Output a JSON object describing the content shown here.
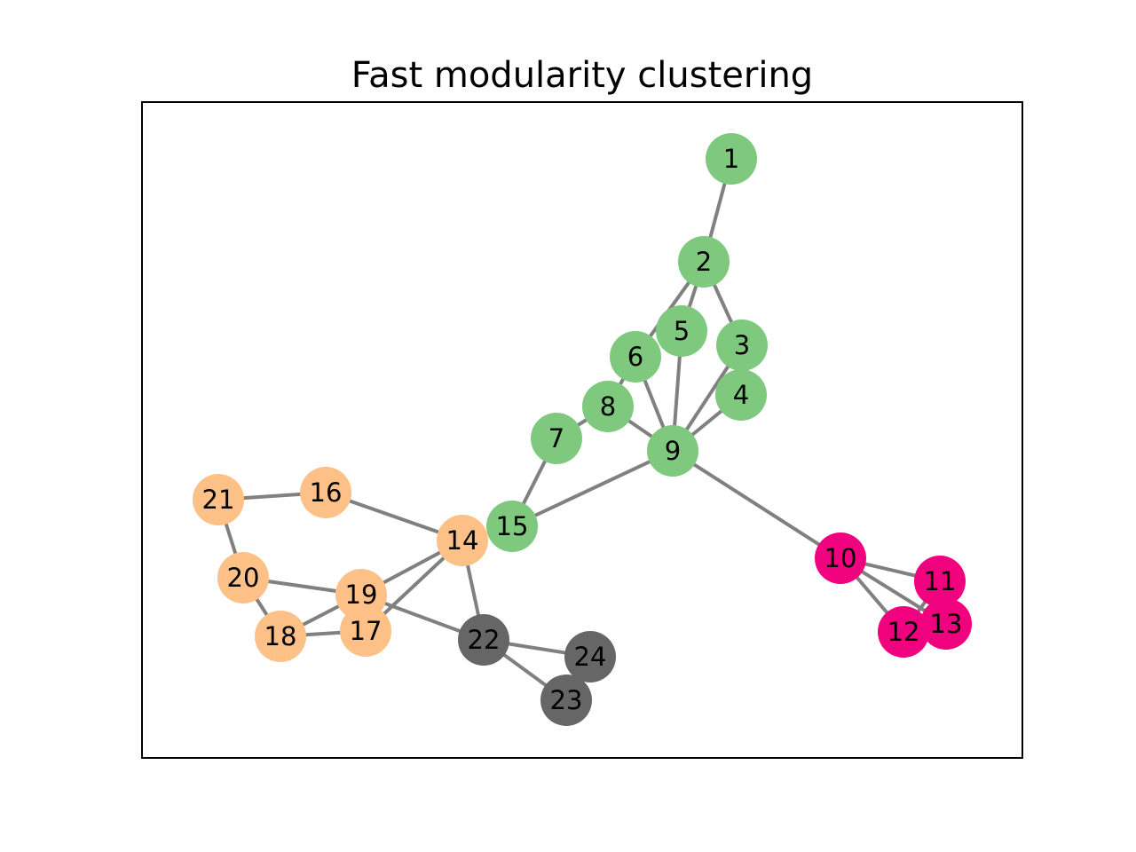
{
  "title": "Fast modularity clustering",
  "edge_color": "#808080",
  "clusters": [
    {
      "id": "A",
      "color": "#7fc97f"
    },
    {
      "id": "B",
      "color": "#f0027f"
    },
    {
      "id": "C",
      "color": "#fdc086"
    },
    {
      "id": "D",
      "color": "#666666"
    }
  ],
  "nodes": [
    {
      "id": "1",
      "label": "1",
      "cluster": "A"
    },
    {
      "id": "2",
      "label": "2",
      "cluster": "A"
    },
    {
      "id": "3",
      "label": "3",
      "cluster": "A"
    },
    {
      "id": "4",
      "label": "4",
      "cluster": "A"
    },
    {
      "id": "5",
      "label": "5",
      "cluster": "A"
    },
    {
      "id": "6",
      "label": "6",
      "cluster": "A"
    },
    {
      "id": "7",
      "label": "7",
      "cluster": "A"
    },
    {
      "id": "8",
      "label": "8",
      "cluster": "A"
    },
    {
      "id": "9",
      "label": "9",
      "cluster": "A"
    },
    {
      "id": "15",
      "label": "15",
      "cluster": "A"
    },
    {
      "id": "10",
      "label": "10",
      "cluster": "B"
    },
    {
      "id": "11",
      "label": "11",
      "cluster": "B"
    },
    {
      "id": "12",
      "label": "12",
      "cluster": "B"
    },
    {
      "id": "13",
      "label": "13",
      "cluster": "B"
    },
    {
      "id": "14",
      "label": "14",
      "cluster": "C"
    },
    {
      "id": "16",
      "label": "16",
      "cluster": "C"
    },
    {
      "id": "17",
      "label": "17",
      "cluster": "C"
    },
    {
      "id": "18",
      "label": "18",
      "cluster": "C"
    },
    {
      "id": "19",
      "label": "19",
      "cluster": "C"
    },
    {
      "id": "20",
      "label": "20",
      "cluster": "C"
    },
    {
      "id": "21",
      "label": "21",
      "cluster": "C"
    },
    {
      "id": "22",
      "label": "22",
      "cluster": "D"
    },
    {
      "id": "23",
      "label": "23",
      "cluster": "D"
    },
    {
      "id": "24",
      "label": "24",
      "cluster": "D"
    }
  ],
  "edges": [
    [
      "1",
      "2"
    ],
    [
      "2",
      "3"
    ],
    [
      "2",
      "5"
    ],
    [
      "2",
      "6"
    ],
    [
      "3",
      "9"
    ],
    [
      "4",
      "9"
    ],
    [
      "5",
      "9"
    ],
    [
      "6",
      "9"
    ],
    [
      "6",
      "8"
    ],
    [
      "7",
      "8"
    ],
    [
      "8",
      "9"
    ],
    [
      "7",
      "15"
    ],
    [
      "9",
      "15"
    ],
    [
      "9",
      "10"
    ],
    [
      "10",
      "11"
    ],
    [
      "10",
      "12"
    ],
    [
      "10",
      "13"
    ],
    [
      "11",
      "12"
    ],
    [
      "11",
      "13"
    ],
    [
      "12",
      "13"
    ],
    [
      "14",
      "16"
    ],
    [
      "14",
      "19"
    ],
    [
      "14",
      "17"
    ],
    [
      "14",
      "22"
    ],
    [
      "16",
      "21"
    ],
    [
      "21",
      "20"
    ],
    [
      "20",
      "19"
    ],
    [
      "20",
      "18"
    ],
    [
      "19",
      "18"
    ],
    [
      "18",
      "17"
    ],
    [
      "19",
      "22"
    ],
    [
      "22",
      "23"
    ],
    [
      "22",
      "24"
    ],
    [
      "23",
      "24"
    ]
  ]
}
